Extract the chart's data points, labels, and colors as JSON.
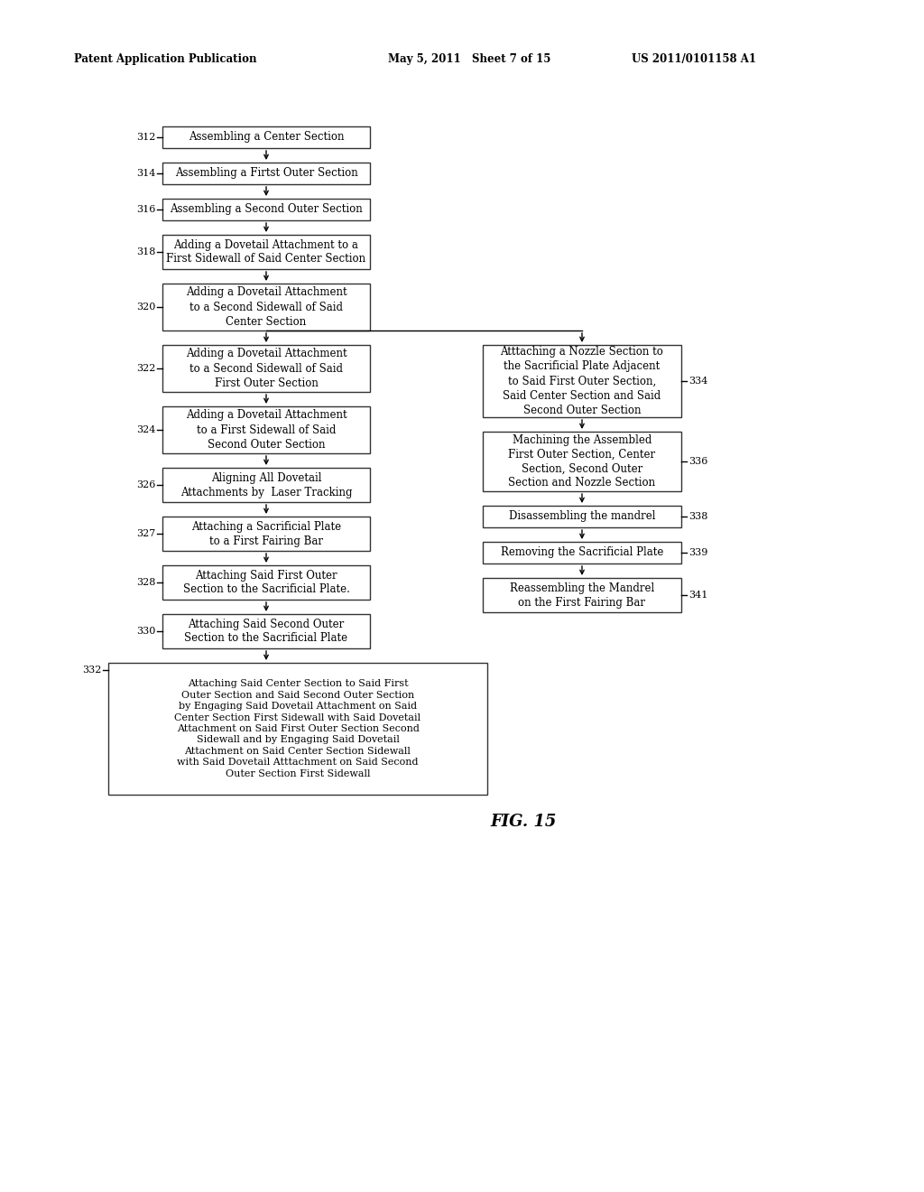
{
  "bg_color": "#ffffff",
  "header_left": "Patent Application Publication",
  "header_mid": "May 5, 2011   Sheet 7 of 15",
  "header_right": "US 2011/0101158 A1",
  "fig_label": "FIG. 15",
  "left_boxes": [
    {
      "id": "312",
      "label": "Assembling a Center Section",
      "nlines": 1
    },
    {
      "id": "314",
      "label": "Assembling a Firtst Outer Section",
      "nlines": 1
    },
    {
      "id": "316",
      "label": "Assembling a Second Outer Section",
      "nlines": 1
    },
    {
      "id": "318",
      "label": "Adding a Dovetail Attachment to a\nFirst Sidewall of Said Center Section",
      "nlines": 2
    },
    {
      "id": "320",
      "label": "Adding a Dovetail Attachment\nto a Second Sidewall of Said\nCenter Section",
      "nlines": 3
    },
    {
      "id": "322",
      "label": "Adding a Dovetail Attachment\nto a Second Sidewall of Said\nFirst Outer Section",
      "nlines": 3
    },
    {
      "id": "324",
      "label": "Adding a Dovetail Attachment\nto a First Sidewall of Said\nSecond Outer Section",
      "nlines": 3
    },
    {
      "id": "326",
      "label": "Aligning All Dovetail\nAttachments by  Laser Tracking",
      "nlines": 2
    },
    {
      "id": "327",
      "label": "Attaching a Sacrificial Plate\nto a First Fairing Bar",
      "nlines": 2
    },
    {
      "id": "328",
      "label": "Attaching Said First Outer\nSection to the Sacrificial Plate.",
      "nlines": 2
    },
    {
      "id": "330",
      "label": "Attaching Said Second Outer\nSection to the Sacrificial Plate",
      "nlines": 2
    }
  ],
  "right_boxes": [
    {
      "id": "334",
      "label": "Atttaching a Nozzle Section to\nthe Sacrificial Plate Adjacent\nto Said First Outer Section,\nSaid Center Section and Said\nSecond Outer Section",
      "nlines": 5
    },
    {
      "id": "336",
      "label": "Machining the Assembled\nFirst Outer Section, Center\nSection, Second Outer\nSection and Nozzle Section",
      "nlines": 4
    },
    {
      "id": "338",
      "label": "Disassembling the mandrel",
      "nlines": 1
    },
    {
      "id": "339",
      "label": "Removing the Sacrificial Plate",
      "nlines": 1
    },
    {
      "id": "341",
      "label": "Reassembling the Mandrel\non the First Fairing Bar",
      "nlines": 2
    }
  ],
  "bottom_box": {
    "id": "332",
    "label": "Attaching Said Center Section to Said First\nOuter Section and Said Second Outer Section\nby Engaging Said Dovetail Attachment on Said\nCenter Section First Sidewall with Said Dovetail\nAttachment on Said First Outer Section Second\nSidewall and by Engaging Said Dovetail\nAttachment on Said Center Section Sidewall\nwith Said Dovetail Atttachment on Said Second\nOuter Section First Sidewall",
    "nlines": 9
  }
}
